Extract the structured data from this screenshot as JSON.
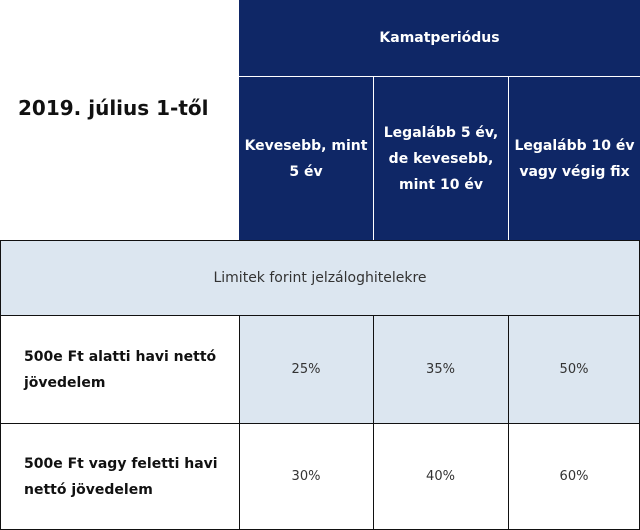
{
  "title": "2019. július 1-től",
  "header": {
    "group_label": "Kamatperiódus",
    "columns": [
      "Kevesebb, mint 5 év",
      "Legalább 5 év, de kevesebb, mint 10 év",
      "Legalább 10 év vagy végig fix"
    ]
  },
  "section": {
    "label": "Limitek forint jelzáloghitelekre"
  },
  "rows": [
    {
      "label": "500e Ft alatti havi nettó jövedelem",
      "values": [
        "25%",
        "35%",
        "50%"
      ]
    },
    {
      "label": "500e Ft vagy feletti havi nettó jövedelem",
      "values": [
        "30%",
        "40%",
        "60%"
      ]
    }
  ],
  "colors": {
    "header_bg": "#0f2766",
    "header_text": "#ffffff",
    "shade_bg": "#dce6f0"
  }
}
